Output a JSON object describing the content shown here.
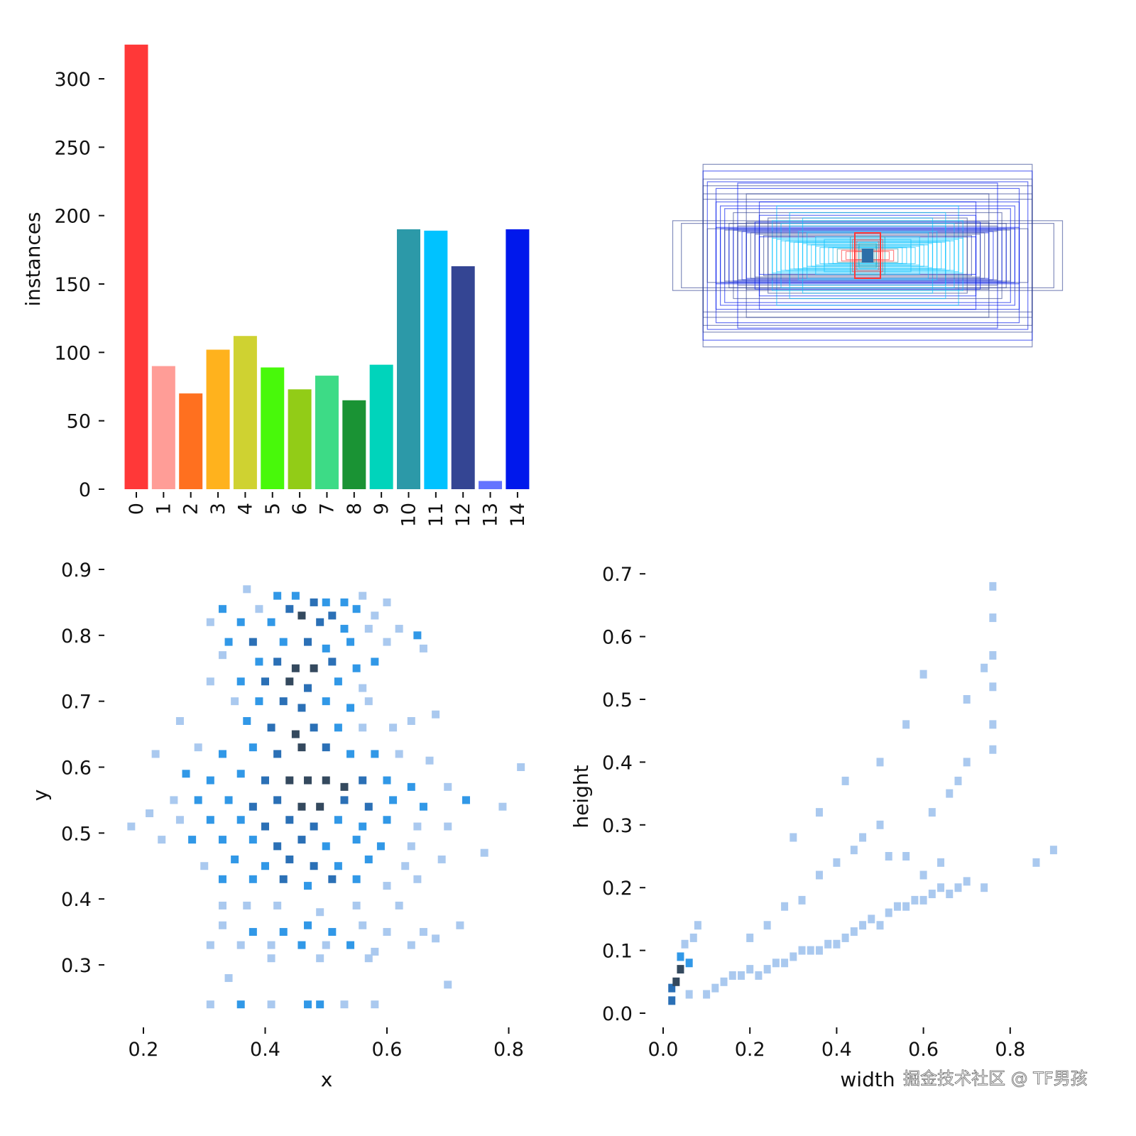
{
  "chart_data": [
    {
      "type": "bar",
      "ylabel": "instances",
      "xlabel": "",
      "categories": [
        "0",
        "1",
        "2",
        "3",
        "4",
        "5",
        "6",
        "7",
        "8",
        "9",
        "10",
        "11",
        "12",
        "13",
        "14"
      ],
      "values": [
        325,
        90,
        70,
        102,
        112,
        89,
        73,
        83,
        65,
        91,
        190,
        189,
        163,
        6,
        190
      ],
      "colors": [
        "#ff3838",
        "#ff9d97",
        "#ff701f",
        "#ffb21d",
        "#cfd231",
        "#48f90a",
        "#92cc17",
        "#3ddb86",
        "#1a9334",
        "#00d4bb",
        "#2c99a8",
        "#00c2ff",
        "#344593",
        "#6473ff",
        "#0018ec"
      ],
      "yticks": [
        0,
        50,
        100,
        150,
        200,
        250,
        300
      ],
      "ylim": [
        0,
        330
      ],
      "grid": false
    },
    {
      "type": "boxes",
      "description_free": true
    },
    {
      "type": "heatmap",
      "xlabel": "x",
      "ylabel": "y",
      "xticks": [
        "0.2",
        "0.4",
        "0.6",
        "0.8"
      ],
      "yticks": [
        "0.3",
        "0.4",
        "0.5",
        "0.6",
        "0.7",
        "0.8",
        "0.9"
      ],
      "xlim": [
        0.17,
        0.84
      ],
      "ylim": [
        0.23,
        0.9
      ],
      "cells_x_y_level": [
        [
          0.37,
          0.87,
          1
        ],
        [
          0.42,
          0.86,
          2
        ],
        [
          0.45,
          0.86,
          2
        ],
        [
          0.48,
          0.85,
          3
        ],
        [
          0.5,
          0.85,
          2
        ],
        [
          0.53,
          0.85,
          2
        ],
        [
          0.56,
          0.86,
          1
        ],
        [
          0.6,
          0.85,
          1
        ],
        [
          0.33,
          0.84,
          2
        ],
        [
          0.39,
          0.84,
          1
        ],
        [
          0.44,
          0.84,
          3
        ],
        [
          0.46,
          0.83,
          4
        ],
        [
          0.51,
          0.83,
          3
        ],
        [
          0.55,
          0.84,
          2
        ],
        [
          0.58,
          0.83,
          1
        ],
        [
          0.31,
          0.82,
          1
        ],
        [
          0.36,
          0.82,
          2
        ],
        [
          0.41,
          0.82,
          2
        ],
        [
          0.49,
          0.82,
          3
        ],
        [
          0.53,
          0.81,
          2
        ],
        [
          0.57,
          0.81,
          1
        ],
        [
          0.62,
          0.81,
          1
        ],
        [
          0.65,
          0.8,
          2
        ],
        [
          0.34,
          0.79,
          2
        ],
        [
          0.38,
          0.79,
          3
        ],
        [
          0.43,
          0.79,
          2
        ],
        [
          0.47,
          0.79,
          3
        ],
        [
          0.5,
          0.78,
          2
        ],
        [
          0.54,
          0.79,
          2
        ],
        [
          0.6,
          0.79,
          1
        ],
        [
          0.66,
          0.78,
          1
        ],
        [
          0.33,
          0.77,
          1
        ],
        [
          0.39,
          0.76,
          2
        ],
        [
          0.42,
          0.76,
          3
        ],
        [
          0.45,
          0.75,
          4
        ],
        [
          0.48,
          0.75,
          4
        ],
        [
          0.51,
          0.76,
          3
        ],
        [
          0.55,
          0.75,
          2
        ],
        [
          0.58,
          0.76,
          2
        ],
        [
          0.31,
          0.73,
          1
        ],
        [
          0.36,
          0.73,
          2
        ],
        [
          0.4,
          0.73,
          3
        ],
        [
          0.44,
          0.73,
          4
        ],
        [
          0.47,
          0.72,
          3
        ],
        [
          0.52,
          0.73,
          2
        ],
        [
          0.56,
          0.72,
          1
        ],
        [
          0.35,
          0.7,
          1
        ],
        [
          0.39,
          0.7,
          2
        ],
        [
          0.43,
          0.7,
          3
        ],
        [
          0.46,
          0.69,
          3
        ],
        [
          0.5,
          0.7,
          2
        ],
        [
          0.54,
          0.69,
          2
        ],
        [
          0.57,
          0.7,
          1
        ],
        [
          0.26,
          0.67,
          1
        ],
        [
          0.37,
          0.67,
          2
        ],
        [
          0.41,
          0.66,
          3
        ],
        [
          0.45,
          0.65,
          4
        ],
        [
          0.48,
          0.66,
          3
        ],
        [
          0.52,
          0.66,
          2
        ],
        [
          0.56,
          0.66,
          1
        ],
        [
          0.61,
          0.66,
          1
        ],
        [
          0.64,
          0.67,
          1
        ],
        [
          0.68,
          0.68,
          1
        ],
        [
          0.22,
          0.62,
          1
        ],
        [
          0.29,
          0.63,
          1
        ],
        [
          0.33,
          0.62,
          2
        ],
        [
          0.38,
          0.63,
          2
        ],
        [
          0.42,
          0.62,
          3
        ],
        [
          0.46,
          0.63,
          4
        ],
        [
          0.5,
          0.63,
          3
        ],
        [
          0.54,
          0.62,
          2
        ],
        [
          0.58,
          0.62,
          2
        ],
        [
          0.62,
          0.62,
          1
        ],
        [
          0.67,
          0.61,
          1
        ],
        [
          0.27,
          0.59,
          2
        ],
        [
          0.31,
          0.58,
          2
        ],
        [
          0.36,
          0.59,
          2
        ],
        [
          0.4,
          0.58,
          3
        ],
        [
          0.44,
          0.58,
          4
        ],
        [
          0.47,
          0.58,
          4
        ],
        [
          0.5,
          0.58,
          4
        ],
        [
          0.53,
          0.57,
          4
        ],
        [
          0.56,
          0.58,
          3
        ],
        [
          0.6,
          0.58,
          2
        ],
        [
          0.64,
          0.57,
          2
        ],
        [
          0.7,
          0.57,
          1
        ],
        [
          0.82,
          0.6,
          1
        ],
        [
          0.25,
          0.55,
          1
        ],
        [
          0.29,
          0.55,
          2
        ],
        [
          0.34,
          0.55,
          2
        ],
        [
          0.38,
          0.54,
          3
        ],
        [
          0.42,
          0.55,
          3
        ],
        [
          0.46,
          0.54,
          4
        ],
        [
          0.49,
          0.54,
          4
        ],
        [
          0.53,
          0.55,
          3
        ],
        [
          0.57,
          0.54,
          3
        ],
        [
          0.61,
          0.55,
          2
        ],
        [
          0.66,
          0.54,
          2
        ],
        [
          0.73,
          0.55,
          2
        ],
        [
          0.79,
          0.54,
          1
        ],
        [
          0.21,
          0.53,
          1
        ],
        [
          0.26,
          0.52,
          1
        ],
        [
          0.31,
          0.52,
          2
        ],
        [
          0.36,
          0.52,
          2
        ],
        [
          0.4,
          0.51,
          3
        ],
        [
          0.44,
          0.52,
          3
        ],
        [
          0.48,
          0.51,
          3
        ],
        [
          0.52,
          0.52,
          2
        ],
        [
          0.56,
          0.51,
          2
        ],
        [
          0.6,
          0.52,
          2
        ],
        [
          0.65,
          0.51,
          1
        ],
        [
          0.7,
          0.51,
          1
        ],
        [
          0.18,
          0.51,
          1
        ],
        [
          0.23,
          0.49,
          1
        ],
        [
          0.28,
          0.49,
          2
        ],
        [
          0.33,
          0.49,
          2
        ],
        [
          0.38,
          0.49,
          2
        ],
        [
          0.42,
          0.48,
          3
        ],
        [
          0.46,
          0.49,
          3
        ],
        [
          0.5,
          0.48,
          2
        ],
        [
          0.55,
          0.49,
          2
        ],
        [
          0.59,
          0.48,
          2
        ],
        [
          0.64,
          0.48,
          1
        ],
        [
          0.76,
          0.47,
          1
        ],
        [
          0.3,
          0.45,
          1
        ],
        [
          0.35,
          0.46,
          2
        ],
        [
          0.4,
          0.45,
          2
        ],
        [
          0.44,
          0.46,
          3
        ],
        [
          0.48,
          0.45,
          3
        ],
        [
          0.52,
          0.45,
          2
        ],
        [
          0.57,
          0.46,
          2
        ],
        [
          0.63,
          0.45,
          1
        ],
        [
          0.69,
          0.46,
          1
        ],
        [
          0.33,
          0.43,
          2
        ],
        [
          0.38,
          0.43,
          2
        ],
        [
          0.43,
          0.43,
          3
        ],
        [
          0.47,
          0.42,
          2
        ],
        [
          0.51,
          0.43,
          3
        ],
        [
          0.55,
          0.43,
          2
        ],
        [
          0.6,
          0.42,
          1
        ],
        [
          0.65,
          0.43,
          1
        ],
        [
          0.33,
          0.39,
          1
        ],
        [
          0.37,
          0.39,
          1
        ],
        [
          0.42,
          0.39,
          1
        ],
        [
          0.49,
          0.38,
          1
        ],
        [
          0.55,
          0.39,
          1
        ],
        [
          0.62,
          0.39,
          1
        ],
        [
          0.33,
          0.36,
          1
        ],
        [
          0.38,
          0.35,
          2
        ],
        [
          0.43,
          0.35,
          2
        ],
        [
          0.47,
          0.36,
          2
        ],
        [
          0.51,
          0.35,
          2
        ],
        [
          0.56,
          0.36,
          1
        ],
        [
          0.6,
          0.35,
          1
        ],
        [
          0.66,
          0.35,
          1
        ],
        [
          0.72,
          0.36,
          1
        ],
        [
          0.31,
          0.33,
          1
        ],
        [
          0.36,
          0.33,
          1
        ],
        [
          0.41,
          0.33,
          1
        ],
        [
          0.46,
          0.33,
          2
        ],
        [
          0.5,
          0.33,
          1
        ],
        [
          0.54,
          0.33,
          2
        ],
        [
          0.58,
          0.32,
          1
        ],
        [
          0.64,
          0.33,
          1
        ],
        [
          0.68,
          0.34,
          1
        ],
        [
          0.41,
          0.31,
          1
        ],
        [
          0.49,
          0.31,
          1
        ],
        [
          0.57,
          0.31,
          1
        ],
        [
          0.34,
          0.28,
          1
        ],
        [
          0.7,
          0.27,
          1
        ],
        [
          0.31,
          0.24,
          1
        ],
        [
          0.36,
          0.24,
          2
        ],
        [
          0.41,
          0.24,
          1
        ],
        [
          0.47,
          0.24,
          2
        ],
        [
          0.49,
          0.24,
          2
        ],
        [
          0.53,
          0.24,
          1
        ],
        [
          0.58,
          0.24,
          1
        ]
      ],
      "level_colors": [
        "#aac9ef",
        "#3198e7",
        "#2b70b6",
        "#34495e"
      ]
    },
    {
      "type": "heatmap",
      "xlabel": "width",
      "ylabel": "height",
      "xticks": [
        "0.0",
        "0.2",
        "0.4",
        "0.6",
        "0.8"
      ],
      "yticks": [
        "0.0",
        "0.1",
        "0.2",
        "0.3",
        "0.4",
        "0.5",
        "0.6",
        "0.7"
      ],
      "xlim": [
        0.0,
        0.95
      ],
      "ylim": [
        0.0,
        0.7
      ],
      "cells_w_h_level": [
        [
          0.02,
          0.02,
          3
        ],
        [
          0.02,
          0.04,
          3
        ],
        [
          0.03,
          0.05,
          4
        ],
        [
          0.04,
          0.07,
          4
        ],
        [
          0.04,
          0.09,
          2
        ],
        [
          0.05,
          0.11,
          1
        ],
        [
          0.06,
          0.08,
          2
        ],
        [
          0.07,
          0.12,
          1
        ],
        [
          0.06,
          0.03,
          1
        ],
        [
          0.08,
          0.14,
          1
        ],
        [
          0.1,
          0.03,
          1
        ],
        [
          0.12,
          0.04,
          1
        ],
        [
          0.14,
          0.05,
          1
        ],
        [
          0.16,
          0.06,
          1
        ],
        [
          0.18,
          0.06,
          1
        ],
        [
          0.2,
          0.07,
          1
        ],
        [
          0.22,
          0.06,
          1
        ],
        [
          0.24,
          0.07,
          1
        ],
        [
          0.26,
          0.08,
          1
        ],
        [
          0.28,
          0.08,
          1
        ],
        [
          0.3,
          0.09,
          1
        ],
        [
          0.32,
          0.1,
          1
        ],
        [
          0.34,
          0.1,
          1
        ],
        [
          0.36,
          0.1,
          1
        ],
        [
          0.38,
          0.11,
          1
        ],
        [
          0.4,
          0.11,
          1
        ],
        [
          0.42,
          0.12,
          1
        ],
        [
          0.44,
          0.13,
          1
        ],
        [
          0.46,
          0.14,
          1
        ],
        [
          0.48,
          0.15,
          1
        ],
        [
          0.5,
          0.14,
          1
        ],
        [
          0.52,
          0.16,
          1
        ],
        [
          0.54,
          0.17,
          1
        ],
        [
          0.56,
          0.17,
          1
        ],
        [
          0.58,
          0.18,
          1
        ],
        [
          0.6,
          0.18,
          1
        ],
        [
          0.62,
          0.19,
          1
        ],
        [
          0.64,
          0.2,
          1
        ],
        [
          0.66,
          0.19,
          1
        ],
        [
          0.68,
          0.2,
          1
        ],
        [
          0.2,
          0.12,
          1
        ],
        [
          0.24,
          0.14,
          1
        ],
        [
          0.28,
          0.17,
          1
        ],
        [
          0.32,
          0.18,
          1
        ],
        [
          0.36,
          0.22,
          1
        ],
        [
          0.4,
          0.24,
          1
        ],
        [
          0.44,
          0.26,
          1
        ],
        [
          0.46,
          0.28,
          1
        ],
        [
          0.5,
          0.3,
          1
        ],
        [
          0.52,
          0.25,
          1
        ],
        [
          0.56,
          0.25,
          1
        ],
        [
          0.6,
          0.22,
          1
        ],
        [
          0.64,
          0.24,
          1
        ],
        [
          0.7,
          0.21,
          1
        ],
        [
          0.74,
          0.2,
          1
        ],
        [
          0.3,
          0.28,
          1
        ],
        [
          0.36,
          0.32,
          1
        ],
        [
          0.42,
          0.37,
          1
        ],
        [
          0.5,
          0.4,
          1
        ],
        [
          0.56,
          0.46,
          1
        ],
        [
          0.6,
          0.54,
          1
        ],
        [
          0.7,
          0.4,
          1
        ],
        [
          0.7,
          0.5,
          1
        ],
        [
          0.76,
          0.42,
          1
        ],
        [
          0.76,
          0.46,
          1
        ],
        [
          0.74,
          0.55,
          1
        ],
        [
          0.76,
          0.52,
          1
        ],
        [
          0.76,
          0.57,
          1
        ],
        [
          0.76,
          0.63,
          1
        ],
        [
          0.76,
          0.68,
          1
        ],
        [
          0.62,
          0.32,
          1
        ],
        [
          0.66,
          0.35,
          1
        ],
        [
          0.68,
          0.37,
          1
        ],
        [
          0.86,
          0.24,
          1
        ],
        [
          0.9,
          0.26,
          1
        ]
      ],
      "level_colors": [
        "#aac9ef",
        "#3198e7",
        "#2b70b6",
        "#34495e"
      ]
    }
  ],
  "watermark": "掘金技术社区 @ TF男孩"
}
